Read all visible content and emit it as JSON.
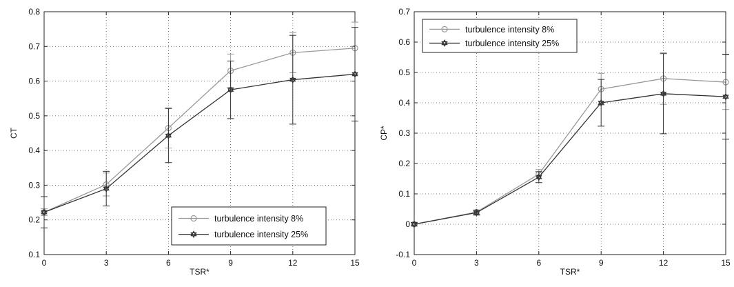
{
  "chart_data": [
    {
      "type": "line",
      "xlabel": "TSR*",
      "ylabel": "CT",
      "x": [
        0,
        3,
        6,
        9,
        12,
        15
      ],
      "xticks": [
        0,
        3,
        6,
        9,
        12,
        15
      ],
      "yticks": [
        0.1,
        0.2,
        0.3,
        0.4,
        0.5,
        0.6,
        0.7,
        0.8
      ],
      "xlim": [
        0,
        15
      ],
      "ylim": [
        0.1,
        0.8
      ],
      "grid": true,
      "legend_position": "bottom-right",
      "series": [
        {
          "name": "turbulence intensity 8%",
          "marker": "circle",
          "color": "#999999",
          "values": [
            0.222,
            0.302,
            0.465,
            0.63,
            0.682,
            0.695
          ],
          "error": [
            0.01,
            0.033,
            0.058,
            0.048,
            0.058,
            0.075
          ]
        },
        {
          "name": "turbulence intensity 25%",
          "marker": "hexagram",
          "color": "#333333",
          "values": [
            0.222,
            0.29,
            0.443,
            0.575,
            0.604,
            0.62
          ],
          "error": [
            0.045,
            0.05,
            0.078,
            0.083,
            0.128,
            0.135
          ]
        }
      ]
    },
    {
      "type": "line",
      "xlabel": "TSR*",
      "ylabel": "CP*",
      "x": [
        0,
        3,
        6,
        9,
        12,
        15
      ],
      "xticks": [
        0,
        3,
        6,
        9,
        12,
        15
      ],
      "yticks": [
        -0.1,
        0,
        0.1,
        0.2,
        0.3,
        0.4,
        0.5,
        0.6,
        0.7
      ],
      "xlim": [
        0,
        15
      ],
      "ylim": [
        -0.1,
        0.7
      ],
      "grid": true,
      "legend_position": "top-left",
      "series": [
        {
          "name": "turbulence intensity 8%",
          "marker": "circle",
          "color": "#999999",
          "values": [
            0.0,
            0.04,
            0.165,
            0.445,
            0.48,
            0.468
          ],
          "error": [
            0.006,
            0.007,
            0.015,
            0.052,
            0.085,
            0.09
          ]
        },
        {
          "name": "turbulence intensity 25%",
          "marker": "hexagram",
          "color": "#333333",
          "values": [
            0.0,
            0.038,
            0.155,
            0.4,
            0.43,
            0.42
          ],
          "error": [
            0.006,
            0.008,
            0.018,
            0.077,
            0.132,
            0.14
          ]
        }
      ]
    }
  ]
}
